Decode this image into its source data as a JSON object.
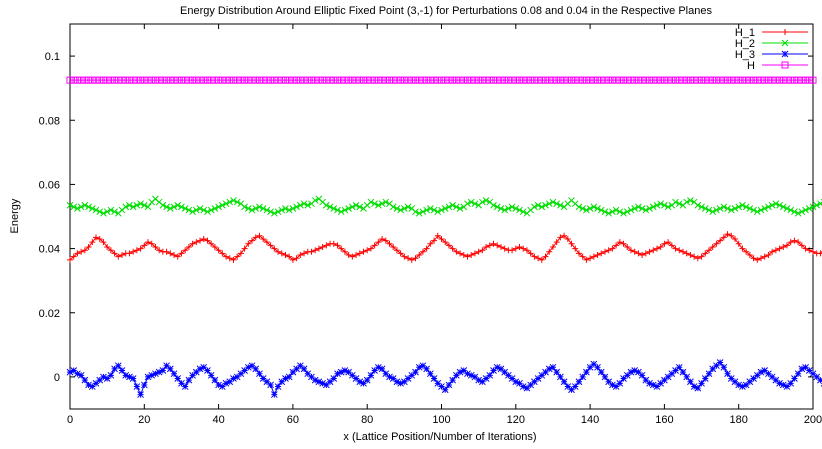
{
  "chart_data": {
    "type": "line",
    "title": "Energy Distribution Around Elliptic Fixed Point (3,-1) for Perturbations 0.08 and 0.04 in the Respective Planes",
    "xlabel": "x (Lattice Position/Number of Iterations)",
    "ylabel": "Energy",
    "xlim": [
      0,
      200
    ],
    "ylim": [
      -0.01,
      0.11
    ],
    "xticks": [
      0,
      20,
      40,
      60,
      80,
      100,
      120,
      140,
      160,
      180,
      200
    ],
    "xtick_labels": [
      "0",
      "20",
      "40",
      "60",
      "80",
      "100",
      "120",
      "140",
      "160",
      "180",
      "200"
    ],
    "yticks": [
      0,
      0.02,
      0.04,
      0.06,
      0.08,
      0.1
    ],
    "ytick_labels": [
      "0",
      "0.02",
      "0.04",
      "0.06",
      "0.08",
      "0.1"
    ],
    "grid": false,
    "legend_position": "top-right",
    "x_step": 1,
    "series": [
      {
        "name": "H_1",
        "color": "#ff0000",
        "marker": "plus",
        "values": [
          0.0365,
          0.0375,
          0.0385,
          0.039,
          0.0395,
          0.0405,
          0.042,
          0.0435,
          0.043,
          0.042,
          0.0405,
          0.0395,
          0.0385,
          0.0375,
          0.038,
          0.0385,
          0.0385,
          0.039,
          0.0395,
          0.04,
          0.041,
          0.042,
          0.0415,
          0.0405,
          0.0395,
          0.039,
          0.039,
          0.0385,
          0.038,
          0.0375,
          0.0385,
          0.0395,
          0.0405,
          0.0415,
          0.042,
          0.0425,
          0.043,
          0.0425,
          0.0415,
          0.0405,
          0.0395,
          0.0385,
          0.0375,
          0.037,
          0.0365,
          0.0375,
          0.0385,
          0.04,
          0.0415,
          0.0425,
          0.0435,
          0.044,
          0.043,
          0.042,
          0.041,
          0.04,
          0.039,
          0.0385,
          0.038,
          0.0375,
          0.0365,
          0.037,
          0.038,
          0.0385,
          0.039,
          0.039,
          0.0395,
          0.04,
          0.0405,
          0.041,
          0.0415,
          0.0415,
          0.041,
          0.04,
          0.039,
          0.038,
          0.0375,
          0.038,
          0.0385,
          0.039,
          0.0395,
          0.04,
          0.041,
          0.042,
          0.043,
          0.0425,
          0.0415,
          0.0405,
          0.0395,
          0.0385,
          0.0375,
          0.037,
          0.0365,
          0.037,
          0.038,
          0.039,
          0.04,
          0.0415,
          0.0425,
          0.044,
          0.043,
          0.042,
          0.041,
          0.04,
          0.039,
          0.0385,
          0.038,
          0.0375,
          0.038,
          0.0385,
          0.039,
          0.0395,
          0.0405,
          0.041,
          0.0415,
          0.041,
          0.0405,
          0.04,
          0.0395,
          0.0395,
          0.04,
          0.0405,
          0.04,
          0.0395,
          0.0385,
          0.0375,
          0.037,
          0.0365,
          0.0375,
          0.039,
          0.0405,
          0.042,
          0.0435,
          0.044,
          0.043,
          0.0415,
          0.04,
          0.0385,
          0.0375,
          0.0365,
          0.037,
          0.0375,
          0.038,
          0.0385,
          0.039,
          0.0395,
          0.04,
          0.041,
          0.042,
          0.0415,
          0.0405,
          0.0395,
          0.039,
          0.0385,
          0.038,
          0.0385,
          0.039,
          0.0395,
          0.04,
          0.0405,
          0.0415,
          0.042,
          0.041,
          0.04,
          0.0395,
          0.039,
          0.0385,
          0.038,
          0.0375,
          0.037,
          0.0375,
          0.0385,
          0.0395,
          0.0405,
          0.0415,
          0.0425,
          0.0435,
          0.0445,
          0.044,
          0.043,
          0.0415,
          0.04,
          0.039,
          0.038,
          0.037,
          0.0365,
          0.037,
          0.0375,
          0.038,
          0.039,
          0.0395,
          0.04,
          0.0405,
          0.041,
          0.042,
          0.0425,
          0.042,
          0.041,
          0.04,
          0.0395,
          0.039,
          0.0385,
          0.0385,
          0.039,
          0.0395,
          0.04,
          0.0405,
          0.041,
          0.0415,
          0.042,
          0.0425,
          0.0435,
          0.0445,
          0.044,
          0.0425,
          0.0405,
          0.039,
          0.038,
          0.037,
          0.0365,
          0.036,
          0.0365,
          0.0375,
          0.0385,
          0.0395,
          0.0405,
          0.0415,
          0.042
        ]
      },
      {
        "name": "H_2",
        "color": "#00dd00",
        "marker": "cross",
        "values": [
          0.0535,
          0.053,
          0.0525,
          0.053,
          0.0535,
          0.053,
          0.0525,
          0.052,
          0.0515,
          0.051,
          0.0515,
          0.052,
          0.0515,
          0.051,
          0.052,
          0.053,
          0.0535,
          0.053,
          0.0535,
          0.054,
          0.0535,
          0.053,
          0.0545,
          0.0555,
          0.0545,
          0.0535,
          0.053,
          0.0525,
          0.053,
          0.0535,
          0.053,
          0.0525,
          0.052,
          0.0515,
          0.052,
          0.0525,
          0.052,
          0.0515,
          0.052,
          0.0525,
          0.053,
          0.0535,
          0.054,
          0.0545,
          0.055,
          0.0545,
          0.054,
          0.053,
          0.0525,
          0.052,
          0.0525,
          0.053,
          0.0525,
          0.052,
          0.0515,
          0.051,
          0.0515,
          0.052,
          0.0525,
          0.052,
          0.0525,
          0.053,
          0.0535,
          0.054,
          0.0535,
          0.054,
          0.055,
          0.0555,
          0.0545,
          0.0535,
          0.053,
          0.0525,
          0.052,
          0.0515,
          0.052,
          0.0525,
          0.053,
          0.0535,
          0.053,
          0.0525,
          0.0535,
          0.0545,
          0.054,
          0.0535,
          0.054,
          0.0545,
          0.054,
          0.053,
          0.0525,
          0.052,
          0.0525,
          0.053,
          0.0525,
          0.0515,
          0.051,
          0.0515,
          0.052,
          0.0525,
          0.052,
          0.0515,
          0.052,
          0.0525,
          0.053,
          0.0535,
          0.053,
          0.0525,
          0.053,
          0.054,
          0.0545,
          0.054,
          0.0535,
          0.0545,
          0.055,
          0.0545,
          0.0535,
          0.053,
          0.0525,
          0.052,
          0.0525,
          0.053,
          0.0525,
          0.052,
          0.0515,
          0.051,
          0.052,
          0.053,
          0.0535,
          0.053,
          0.0535,
          0.054,
          0.0545,
          0.054,
          0.0535,
          0.053,
          0.054,
          0.055,
          0.054,
          0.053,
          0.0525,
          0.052,
          0.0525,
          0.053,
          0.0525,
          0.052,
          0.0515,
          0.051,
          0.0515,
          0.052,
          0.0515,
          0.051,
          0.0515,
          0.052,
          0.0525,
          0.053,
          0.0525,
          0.052,
          0.0525,
          0.053,
          0.0535,
          0.054,
          0.0535,
          0.053,
          0.0535,
          0.0545,
          0.054,
          0.0535,
          0.0545,
          0.055,
          0.0545,
          0.0535,
          0.053,
          0.0525,
          0.052,
          0.0515,
          0.052,
          0.0525,
          0.053,
          0.0525,
          0.052,
          0.0525,
          0.053,
          0.0535,
          0.053,
          0.0525,
          0.052,
          0.0515,
          0.052,
          0.0525,
          0.053,
          0.0535,
          0.054,
          0.0535,
          0.053,
          0.0525,
          0.052,
          0.0515,
          0.051,
          0.0515,
          0.052,
          0.0525,
          0.053,
          0.0535,
          0.054,
          0.0545,
          0.054,
          0.0535,
          0.0545,
          0.055,
          0.0545,
          0.0535,
          0.0525,
          0.052,
          0.0515,
          0.051,
          0.0515,
          0.052,
          0.0525,
          0.053,
          0.0535,
          0.054,
          0.0545,
          0.054,
          0.0535,
          0.053,
          0.0525,
          0.0515
        ]
      },
      {
        "name": "H_3",
        "color": "#0000ff",
        "marker": "star",
        "values": [
          0.0015,
          0.002,
          0.001,
          0.0005,
          -0.001,
          -0.0025,
          -0.003,
          -0.002,
          -0.001,
          0.0,
          -0.0005,
          0.0005,
          0.0025,
          0.0035,
          0.002,
          0.0005,
          0.0,
          -0.0005,
          -0.003,
          -0.0055,
          -0.0025,
          0.0,
          0.0005,
          0.001,
          0.0015,
          0.002,
          0.0035,
          0.0025,
          0.001,
          -0.0005,
          -0.002,
          -0.003,
          -0.001,
          0.0005,
          0.0015,
          0.0025,
          0.003,
          0.002,
          0.0005,
          -0.001,
          -0.0025,
          -0.003,
          -0.002,
          -0.0015,
          -0.0005,
          0.0,
          0.001,
          0.002,
          0.003,
          0.0035,
          0.0025,
          0.001,
          -0.0005,
          -0.0015,
          -0.0025,
          -0.0055,
          -0.003,
          -0.0015,
          -0.0005,
          0.0,
          0.0015,
          0.0025,
          0.0035,
          0.0025,
          0.001,
          0.0,
          -0.001,
          -0.0015,
          -0.002,
          -0.0025,
          -0.0015,
          -0.0005,
          0.001,
          0.0015,
          0.002,
          0.0015,
          0.0005,
          -0.0005,
          -0.0015,
          -0.002,
          -0.001,
          0.0005,
          0.002,
          0.003,
          0.0025,
          0.001,
          0.0,
          -0.0005,
          -0.0015,
          -0.002,
          -0.0015,
          -0.0005,
          0.0005,
          0.0015,
          0.003,
          0.0035,
          0.0025,
          0.001,
          -0.0005,
          -0.002,
          -0.003,
          -0.004,
          -0.0025,
          -0.001,
          0.0005,
          0.0015,
          0.002,
          0.001,
          0.0005,
          0.0,
          -0.001,
          -0.0015,
          -0.0005,
          0.0005,
          0.002,
          0.003,
          0.0025,
          0.0015,
          0.0005,
          -0.0005,
          -0.0015,
          -0.002,
          -0.003,
          -0.0035,
          -0.0025,
          -0.0015,
          -0.0005,
          0.0005,
          0.0015,
          0.0025,
          0.003,
          0.0015,
          0.0,
          -0.0015,
          -0.003,
          -0.004,
          -0.003,
          -0.0015,
          0.0,
          0.0015,
          0.003,
          0.004,
          0.003,
          0.0015,
          0.0,
          -0.0015,
          -0.0025,
          -0.003,
          -0.002,
          -0.0005,
          0.0005,
          0.0015,
          0.002,
          0.0015,
          0.0005,
          -0.001,
          -0.002,
          -0.0025,
          -0.003,
          -0.002,
          -0.001,
          0.0,
          0.001,
          0.002,
          0.003,
          0.0015,
          0.0,
          -0.0015,
          -0.003,
          -0.0035,
          -0.002,
          -0.0005,
          0.001,
          0.0025,
          0.0035,
          0.0045,
          0.003,
          0.001,
          -0.0005,
          -0.0015,
          -0.0025,
          -0.003,
          -0.0025,
          -0.0015,
          -0.0005,
          0.0005,
          0.0015,
          0.002,
          0.001,
          0.0,
          -0.001,
          -0.002,
          -0.0025,
          -0.003,
          -0.002,
          -0.0005,
          0.001,
          0.0025,
          0.003,
          0.002,
          0.001,
          0.0,
          -0.001,
          -0.002,
          -0.0025,
          -0.003,
          -0.002,
          -0.001,
          0.0005,
          0.0015,
          0.0025,
          0.003,
          0.0025,
          0.0015,
          0.0005,
          -0.0005,
          -0.0015,
          -0.0035,
          -0.0025,
          -0.001,
          0.0005,
          0.002,
          0.0035,
          0.0025,
          0.001
        ]
      },
      {
        "name": "H",
        "color": "#ff00ff",
        "marker": "square",
        "constant_value": 0.0925
      }
    ]
  }
}
